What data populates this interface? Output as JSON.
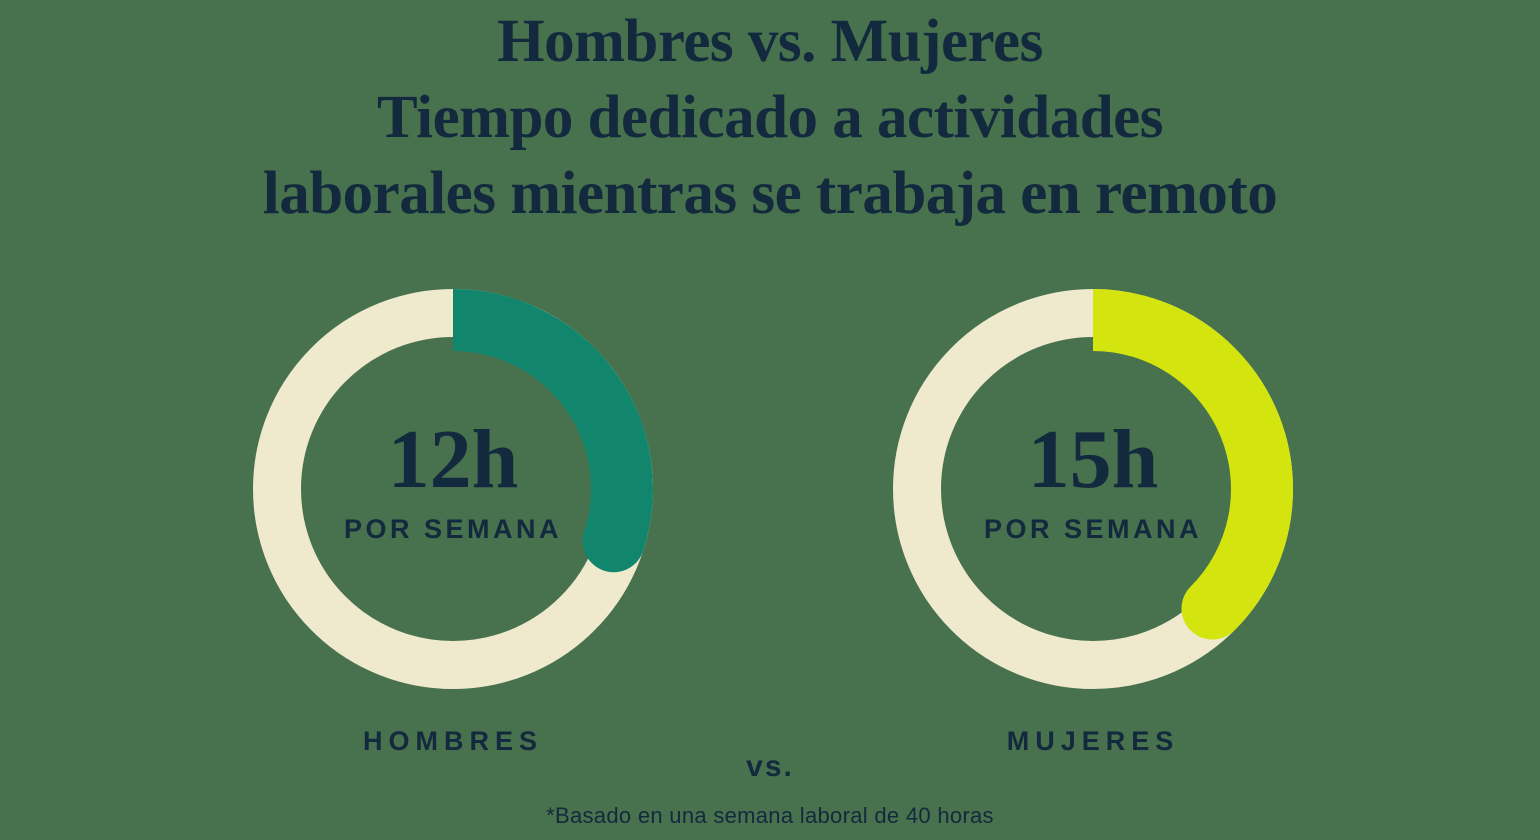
{
  "title": {
    "line1": "Hombres vs. Mujeres",
    "line2": "Tiempo dedicado a actividades",
    "line3": "laborales mientras se trabaja en remoto"
  },
  "separator_label": "vs.",
  "footnote": "*Basado en una semana laboral de 40 horas",
  "colors": {
    "background": "#48714E",
    "text_navy": "#13293D",
    "track_cream": "#EFE9CD",
    "arc_teal": "#12866D",
    "arc_lime": "#D3E40E"
  },
  "chart_data": [
    {
      "type": "donut",
      "group_label": "HOMBRES",
      "value_label": "12h",
      "sub_label": "POR SEMANA",
      "hours": 12,
      "total_hours": 40,
      "fraction": 0.3,
      "arc_color": "#12866D",
      "track_color": "#EFE9CD",
      "layout": "arc starts at 12 o'clock, sweeps clockwise, flat start cap, round end cap"
    },
    {
      "type": "donut",
      "group_label": "MUJERES",
      "value_label": "15h",
      "sub_label": "POR SEMANA",
      "hours": 15,
      "total_hours": 40,
      "fraction": 0.375,
      "arc_color": "#D3E40E",
      "track_color": "#EFE9CD",
      "layout": "arc starts at 12 o'clock, sweeps clockwise, flat start cap, round end cap"
    }
  ]
}
